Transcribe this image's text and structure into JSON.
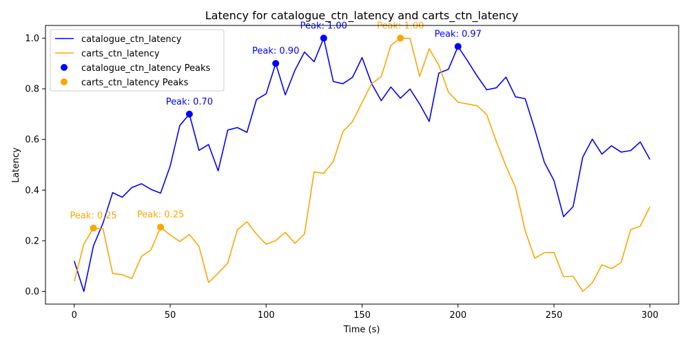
{
  "chart_data": {
    "type": "line",
    "title": "Latency for catalogue_ctn_latency and carts_ctn_latency",
    "xlabel": "Time (s)",
    "ylabel": "Latency",
    "xlim": [
      -15,
      315
    ],
    "ylim": [
      -0.05,
      1.05
    ],
    "x_ticks": [
      0,
      50,
      100,
      150,
      200,
      250,
      300
    ],
    "y_ticks": [
      0.0,
      0.2,
      0.4,
      0.6,
      0.8,
      1.0
    ],
    "x_tick_labels": [
      "0",
      "50",
      "100",
      "150",
      "200",
      "250",
      "300"
    ],
    "y_tick_labels": [
      "0.0",
      "0.2",
      "0.4",
      "0.6",
      "0.8",
      "1.0"
    ],
    "grid": false,
    "legend_position": "top-left",
    "x": [
      0,
      5,
      10,
      15,
      20,
      25,
      30,
      35,
      40,
      45,
      50,
      55,
      60,
      65,
      70,
      75,
      80,
      85,
      90,
      95,
      100,
      105,
      110,
      115,
      120,
      125,
      130,
      135,
      140,
      145,
      150,
      155,
      160,
      165,
      170,
      175,
      180,
      185,
      190,
      195,
      200,
      205,
      210,
      215,
      220,
      225,
      230,
      235,
      240,
      245,
      250,
      255,
      260,
      265,
      270,
      275,
      280,
      285,
      290,
      295,
      300
    ],
    "series": [
      {
        "name": "catalogue_ctn_latency",
        "color": "#0000ff",
        "values": [
          0.12,
          0.0,
          0.18,
          0.27,
          0.39,
          0.372,
          0.41,
          0.425,
          0.403,
          0.388,
          0.495,
          0.655,
          0.7,
          0.557,
          0.58,
          0.476,
          0.637,
          0.647,
          0.628,
          0.758,
          0.78,
          0.9,
          0.776,
          0.873,
          0.945,
          0.907,
          1.0,
          0.829,
          0.82,
          0.845,
          0.923,
          0.82,
          0.753,
          0.807,
          0.763,
          0.799,
          0.74,
          0.671,
          0.862,
          0.877,
          0.967,
          0.91,
          0.85,
          0.796,
          0.804,
          0.846,
          0.768,
          0.761,
          0.64,
          0.51,
          0.438,
          0.295,
          0.335,
          0.53,
          0.601,
          0.542,
          0.575,
          0.55,
          0.556,
          0.59,
          0.521
        ]
      },
      {
        "name": "carts_ctn_latency",
        "color": "#ffa500",
        "values": [
          0.04,
          0.187,
          0.25,
          0.247,
          0.071,
          0.066,
          0.051,
          0.138,
          0.164,
          0.254,
          0.223,
          0.197,
          0.225,
          0.178,
          0.035,
          0.072,
          0.112,
          0.243,
          0.275,
          0.226,
          0.186,
          0.201,
          0.233,
          0.19,
          0.227,
          0.472,
          0.466,
          0.513,
          0.631,
          0.67,
          0.746,
          0.82,
          0.848,
          0.971,
          1.0,
          0.999,
          0.849,
          0.958,
          0.893,
          0.787,
          0.747,
          0.74,
          0.733,
          0.698,
          0.591,
          0.495,
          0.41,
          0.24,
          0.131,
          0.153,
          0.154,
          0.058,
          0.06,
          0.0,
          0.034,
          0.105,
          0.09,
          0.114,
          0.244,
          0.258,
          0.334
        ]
      }
    ],
    "peaks": [
      {
        "name": "catalogue_ctn_latency Peaks",
        "color": "#0000ff",
        "points": [
          {
            "x": 60,
            "y": 0.7,
            "label": "Peak: 0.70"
          },
          {
            "x": 105,
            "y": 0.9,
            "label": "Peak: 0.90"
          },
          {
            "x": 130,
            "y": 1.0,
            "label": "Peak: 1.00"
          },
          {
            "x": 200,
            "y": 0.967,
            "label": "Peak: 0.97"
          }
        ]
      },
      {
        "name": "carts_ctn_latency Peaks",
        "color": "#ffa500",
        "points": [
          {
            "x": 10,
            "y": 0.25,
            "label": "Peak: 0.25"
          },
          {
            "x": 45,
            "y": 0.254,
            "label": "Peak: 0.25"
          },
          {
            "x": 170,
            "y": 1.0,
            "label": "Peak: 1.00"
          }
        ]
      }
    ]
  }
}
